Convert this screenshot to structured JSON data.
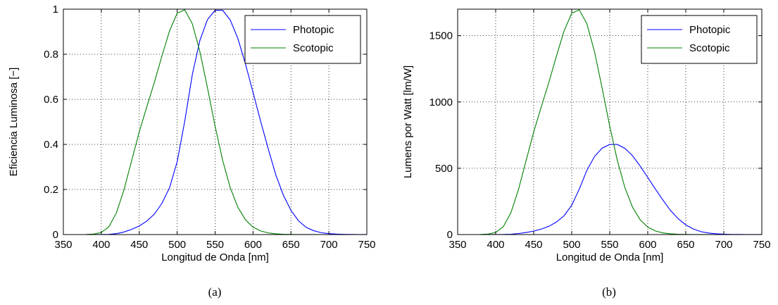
{
  "chart_data": [
    {
      "type": "line",
      "caption": "(a)",
      "xlabel": "Longitud de Onda [nm]",
      "ylabel": "Eficiencia Luminosa [−]",
      "xlim": [
        350,
        750
      ],
      "ylim": [
        0,
        1
      ],
      "xticks": [
        350,
        400,
        450,
        500,
        550,
        600,
        650,
        700,
        750
      ],
      "yticks": [
        0,
        0.2,
        0.4,
        0.6,
        0.8,
        1
      ],
      "ytick_labels": [
        "0",
        "0.2",
        "0.4",
        "0.6",
        "0.8",
        "1"
      ],
      "grid": true,
      "legend_position": "top-right",
      "x": [
        380,
        390,
        400,
        410,
        420,
        430,
        440,
        450,
        460,
        470,
        480,
        490,
        500,
        510,
        520,
        530,
        540,
        550,
        560,
        570,
        580,
        590,
        600,
        610,
        620,
        630,
        640,
        650,
        660,
        670,
        680,
        690,
        700,
        710,
        720,
        730,
        740,
        750
      ],
      "series": [
        {
          "name": "Photopic",
          "color": "#0000ff",
          "values": [
            4e-05,
            0.00012,
            0.0004,
            0.0012,
            0.004,
            0.0116,
            0.023,
            0.038,
            0.06,
            0.091,
            0.139,
            0.208,
            0.323,
            0.503,
            0.71,
            0.862,
            0.954,
            0.995,
            0.995,
            0.952,
            0.87,
            0.757,
            0.631,
            0.503,
            0.381,
            0.265,
            0.175,
            0.107,
            0.061,
            0.032,
            0.017,
            0.0082,
            0.0041,
            0.0021,
            0.00105,
            0.00052,
            0.00025,
            0.00012
          ]
        },
        {
          "name": "Scotopic",
          "color": "#008000",
          "values": [
            0.000589,
            0.002209,
            0.00929,
            0.03484,
            0.0966,
            0.1998,
            0.3281,
            0.455,
            0.567,
            0.676,
            0.793,
            0.904,
            0.982,
            0.997,
            0.935,
            0.811,
            0.65,
            0.481,
            0.3288,
            0.2076,
            0.1212,
            0.0655,
            0.03315,
            0.01593,
            0.00737,
            0.003335,
            0.001497,
            0.000677,
            0.000313,
            0.000148,
            7.15e-05,
            3.53e-05,
            1.78e-05,
            9.1e-06,
            4.8e-06,
            2.5e-06,
            1.4e-06,
            8e-07
          ]
        }
      ]
    },
    {
      "type": "line",
      "caption": "(b)",
      "xlabel": "Longitud de Onda [nm]",
      "ylabel": "Lumens por Watt [lm/W]",
      "xlim": [
        350,
        750
      ],
      "ylim": [
        0,
        1700
      ],
      "xticks": [
        350,
        400,
        450,
        500,
        550,
        600,
        650,
        700,
        750
      ],
      "yticks": [
        0,
        500,
        1000,
        1500
      ],
      "ytick_labels": [
        "0",
        "500",
        "1000",
        "1500"
      ],
      "grid": true,
      "legend_position": "top-right",
      "x": [
        380,
        390,
        400,
        410,
        420,
        430,
        440,
        450,
        460,
        470,
        480,
        490,
        500,
        510,
        520,
        530,
        540,
        550,
        560,
        570,
        580,
        590,
        600,
        610,
        620,
        630,
        640,
        650,
        660,
        670,
        680,
        690,
        700,
        710,
        720,
        730,
        740,
        750
      ],
      "series": [
        {
          "name": "Photopic",
          "color": "#0000ff",
          "values": [
            0.03,
            0.08,
            0.27,
            0.82,
            2.7,
            7.9,
            15.7,
            26.0,
            41.0,
            62.1,
            94.9,
            142.1,
            220.6,
            343.5,
            485.0,
            588.8,
            651.6,
            679.6,
            679.6,
            650.2,
            594.2,
            517.0,
            431.0,
            343.5,
            260.2,
            181.0,
            119.5,
            73.1,
            41.7,
            21.9,
            11.6,
            5.6,
            2.8,
            1.4,
            0.72,
            0.36,
            0.17,
            0.08
          ]
        },
        {
          "name": "Scotopic",
          "color": "#008000",
          "values": [
            1.0,
            3.8,
            15.8,
            59.2,
            164.1,
            339.6,
            557.6,
            773.3,
            963.7,
            1148.9,
            1347.8,
            1536.4,
            1669.0,
            1694.5,
            1589.1,
            1378.4,
            1104.7,
            817.5,
            558.8,
            352.8,
            206.0,
            111.3,
            56.3,
            27.1,
            12.5,
            5.7,
            2.5,
            1.2,
            0.5,
            0.25,
            0.12,
            0.06,
            0.03,
            0.015,
            0.008,
            0.004,
            0.002,
            0.001
          ]
        }
      ]
    }
  ]
}
